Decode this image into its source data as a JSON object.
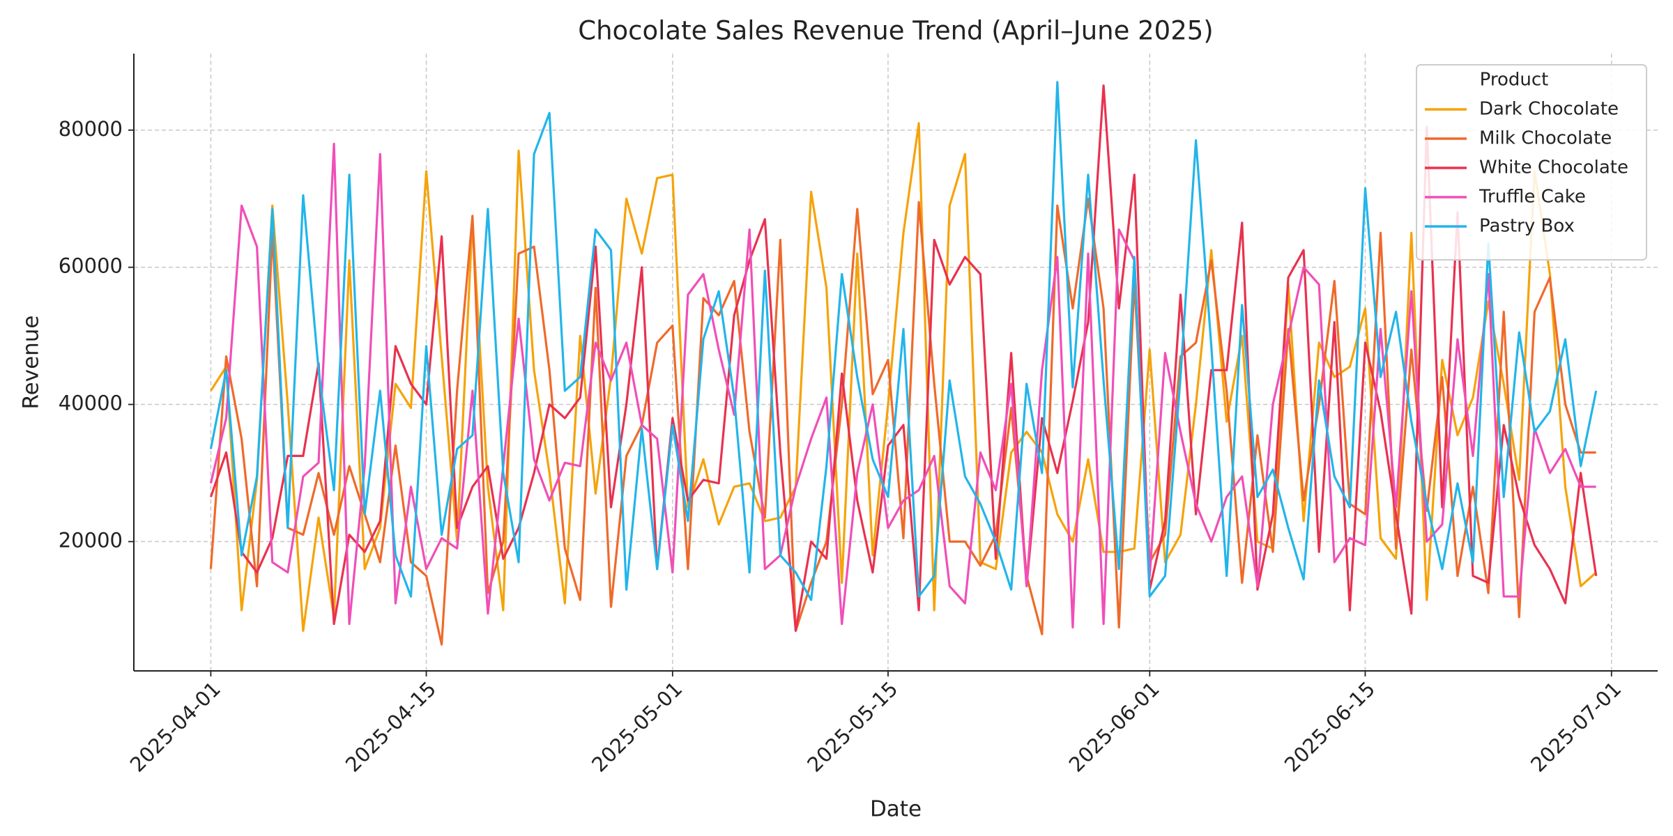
{
  "chart_data": {
    "type": "line",
    "title": "Chocolate Sales Revenue Trend (April–June 2025)",
    "x_label": "Date",
    "y_label": "Revenue",
    "legend_title": "Product",
    "legend": "upper right",
    "grid": true,
    "xlim": [
      "2025-03-27",
      "2025-07-04"
    ],
    "xticks": [
      "2025-04-01",
      "2025-04-15",
      "2025-05-01",
      "2025-05-15",
      "2025-06-01",
      "2025-06-15",
      "2025-07-01"
    ],
    "ylim": [
      1150,
      91150
    ],
    "yticks": [
      20000,
      40000,
      60000,
      80000
    ],
    "x": [
      "2025-04-01",
      "2025-04-02",
      "2025-04-03",
      "2025-04-04",
      "2025-04-05",
      "2025-04-06",
      "2025-04-07",
      "2025-04-08",
      "2025-04-09",
      "2025-04-10",
      "2025-04-11",
      "2025-04-12",
      "2025-04-13",
      "2025-04-14",
      "2025-04-15",
      "2025-04-16",
      "2025-04-17",
      "2025-04-18",
      "2025-04-19",
      "2025-04-20",
      "2025-04-21",
      "2025-04-22",
      "2025-04-23",
      "2025-04-24",
      "2025-04-25",
      "2025-04-26",
      "2025-04-27",
      "2025-04-28",
      "2025-04-29",
      "2025-04-30",
      "2025-05-01",
      "2025-05-02",
      "2025-05-03",
      "2025-05-04",
      "2025-05-05",
      "2025-05-06",
      "2025-05-07",
      "2025-05-08",
      "2025-05-09",
      "2025-05-10",
      "2025-05-11",
      "2025-05-12",
      "2025-05-13",
      "2025-05-14",
      "2025-05-15",
      "2025-05-16",
      "2025-05-17",
      "2025-05-18",
      "2025-05-19",
      "2025-05-20",
      "2025-05-21",
      "2025-05-22",
      "2025-05-23",
      "2025-05-24",
      "2025-05-25",
      "2025-05-26",
      "2025-05-27",
      "2025-05-28",
      "2025-05-29",
      "2025-05-30",
      "2025-05-31",
      "2025-06-01",
      "2025-06-02",
      "2025-06-03",
      "2025-06-04",
      "2025-06-05",
      "2025-06-06",
      "2025-06-07",
      "2025-06-08",
      "2025-06-09",
      "2025-06-10",
      "2025-06-11",
      "2025-06-12",
      "2025-06-13",
      "2025-06-14",
      "2025-06-15",
      "2025-06-16",
      "2025-06-17",
      "2025-06-18",
      "2025-06-19",
      "2025-06-20",
      "2025-06-21",
      "2025-06-22",
      "2025-06-23",
      "2025-06-24",
      "2025-06-25",
      "2025-06-26",
      "2025-06-27",
      "2025-06-28",
      "2025-06-29",
      "2025-06-30"
    ],
    "series": [
      {
        "name": "Dark Chocolate",
        "color": "#f5a30a",
        "values": [
          42000,
          45500,
          10000,
          29000,
          69000,
          40000,
          7000,
          23500,
          9000,
          61000,
          16000,
          22000,
          43000,
          39500,
          74000,
          47000,
          20000,
          67000,
          28000,
          10000,
          77000,
          45000,
          30000,
          11000,
          50000,
          27000,
          44000,
          70000,
          62000,
          73000,
          73500,
          25000,
          32000,
          22500,
          28000,
          28500,
          23000,
          23500,
          28000,
          71000,
          57000,
          14000,
          62000,
          18000,
          40000,
          65000,
          81000,
          10000,
          69000,
          76500,
          17000,
          16000,
          33000,
          36000,
          33000,
          24000,
          20000,
          32000,
          18500,
          18500,
          19000,
          48000,
          17000,
          21000,
          40000,
          62500,
          37500,
          50000,
          20000,
          19000,
          57500,
          23000,
          49000,
          44000,
          45500,
          54000,
          20500,
          17500,
          65000,
          11500,
          46500,
          35500,
          41000,
          55000,
          43000,
          29000,
          74000,
          59000,
          28000,
          13500,
          15500
        ]
      },
      {
        "name": "Milk Chocolate",
        "color": "#ef6a2a",
        "values": [
          16000,
          47000,
          35000,
          13500,
          65000,
          22000,
          21000,
          30000,
          21000,
          31000,
          24000,
          17000,
          34000,
          17000,
          15000,
          5000,
          42000,
          67500,
          12500,
          20000,
          62000,
          63000,
          45000,
          19000,
          11500,
          57000,
          10500,
          32500,
          37000,
          49000,
          51500,
          16000,
          55500,
          53000,
          58000,
          36000,
          23500,
          64000,
          7000,
          14000,
          20000,
          40000,
          68500,
          41500,
          46500,
          20500,
          69500,
          43000,
          20000,
          20000,
          16500,
          21000,
          39500,
          15000,
          6500,
          69000,
          54000,
          70000,
          54000,
          7500,
          58000,
          17000,
          21000,
          47000,
          49000,
          61000,
          42000,
          14000,
          35500,
          18500,
          51000,
          26000,
          40000,
          58000,
          25500,
          24000,
          65000,
          19000,
          48000,
          24500,
          44000,
          15000,
          28000,
          12500,
          53500,
          9000,
          53500,
          58500,
          40000,
          33000,
          33000
        ]
      },
      {
        "name": "White Chocolate",
        "color": "#e8324f",
        "values": [
          26500,
          33000,
          18500,
          15500,
          20500,
          32500,
          32500,
          46000,
          8000,
          21000,
          18500,
          23000,
          48500,
          43000,
          40000,
          64500,
          22000,
          28000,
          31000,
          17500,
          22000,
          30000,
          40000,
          38000,
          41000,
          63000,
          25000,
          40000,
          60000,
          16000,
          38000,
          26000,
          29000,
          28500,
          53000,
          61000,
          67000,
          33000,
          7000,
          20000,
          17500,
          44500,
          26000,
          15500,
          34000,
          37000,
          10000,
          64000,
          57500,
          61500,
          59000,
          17500,
          47500,
          13500,
          38000,
          30000,
          40500,
          52000,
          86500,
          54000,
          73500,
          13000,
          23000,
          56000,
          24000,
          45000,
          45000,
          66500,
          13000,
          24000,
          58500,
          62500,
          18500,
          52000,
          10000,
          49000,
          39000,
          24000,
          9500,
          80500,
          25000,
          68000,
          15000,
          14000,
          37000,
          26500,
          19500,
          16000,
          11000,
          30000,
          15000
        ]
      },
      {
        "name": "Truffle Cake",
        "color": "#f04fb8",
        "values": [
          28500,
          38000,
          69000,
          63000,
          17000,
          15500,
          29500,
          31500,
          78000,
          8000,
          31000,
          76500,
          11000,
          28000,
          16000,
          20500,
          19000,
          42000,
          9500,
          31000,
          52500,
          32000,
          26000,
          31500,
          31000,
          49000,
          43500,
          49000,
          37000,
          35000,
          15500,
          56000,
          59000,
          48000,
          38500,
          65500,
          16000,
          18000,
          28000,
          35000,
          41000,
          8000,
          30000,
          40000,
          22000,
          26000,
          27500,
          32500,
          13500,
          11000,
          33000,
          27500,
          43000,
          13500,
          45000,
          61500,
          7500,
          62000,
          8000,
          65500,
          61000,
          15000,
          47500,
          36000,
          25500,
          20000,
          26500,
          29500,
          13500,
          40000,
          50000,
          60000,
          57500,
          17000,
          20500,
          19500,
          51000,
          25000,
          56500,
          20000,
          22500,
          49500,
          32500,
          59000,
          12000,
          12000,
          36500,
          30000,
          33500,
          28000,
          28000
        ]
      },
      {
        "name": "Pastry Box",
        "color": "#22b5ea",
        "values": [
          33500,
          45000,
          18000,
          29500,
          68500,
          22000,
          70500,
          45000,
          27500,
          73500,
          24000,
          42000,
          18000,
          12000,
          48500,
          21000,
          33500,
          35500,
          68500,
          30000,
          17000,
          76500,
          82500,
          42000,
          44000,
          65500,
          62500,
          13000,
          36500,
          16000,
          37000,
          23000,
          49500,
          56500,
          41000,
          15500,
          59500,
          18000,
          15500,
          11500,
          31000,
          59000,
          44000,
          32000,
          26500,
          51000,
          12000,
          15000,
          43500,
          29500,
          25500,
          20000,
          13000,
          43000,
          30000,
          87000,
          42500,
          73500,
          43500,
          16000,
          61500,
          12000,
          15000,
          44000,
          78500,
          48500,
          15000,
          54500,
          26500,
          30500,
          22000,
          14500,
          43500,
          29500,
          25000,
          71500,
          44000,
          53500,
          37500,
          25500,
          16000,
          28500,
          17000,
          63500,
          26500,
          50500,
          36000,
          39000,
          49500,
          31000,
          42000
        ]
      }
    ]
  }
}
